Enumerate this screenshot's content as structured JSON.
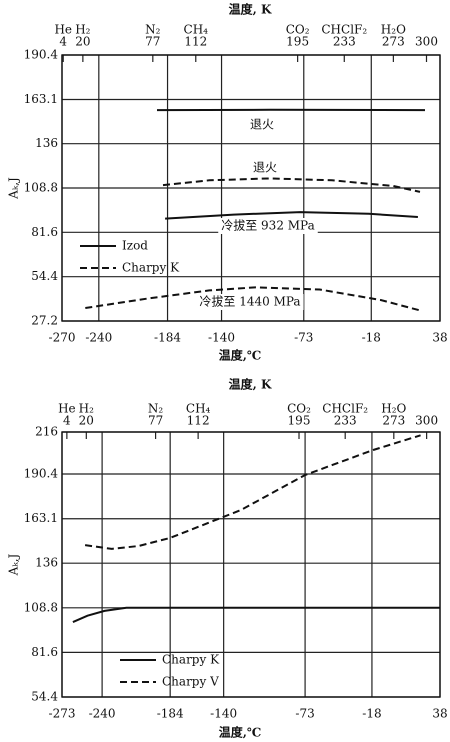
{
  "chart_data": [
    {
      "type": "line",
      "title": "温度, K",
      "x_label": "温度,℃",
      "y_label": "Aₖ,J",
      "xlim": [
        -270,
        38
      ],
      "xticks": [
        -270,
        -240,
        -184,
        -140,
        -73,
        -18,
        38
      ],
      "ylim": [
        27.2,
        190.4
      ],
      "yticks": [
        190.4,
        163.1,
        136,
        108.8,
        81.6,
        54.4,
        27.2
      ],
      "x2lim": [
        3,
        311
      ],
      "x2ticks": [
        4,
        20,
        77,
        112,
        195,
        233,
        273,
        300
      ],
      "x2tick_names": [
        "He",
        "H₂",
        "N₂",
        "CH₄",
        "CO₂",
        "CHClF₂",
        "H₂O",
        null
      ],
      "grid": true,
      "legend": "lower left",
      "series": [
        {
          "name": "Izod",
          "color": "#111111",
          "style": "solid",
          "x": [
            -192.6,
            -100,
            25.8,
            null,
            -186,
            -130,
            -76,
            -20,
            20
          ],
          "values": [
            156.6,
            156.8,
            156.6,
            null,
            90,
            92.5,
            94,
            93,
            91
          ]
        },
        {
          "name": "Charpy K",
          "color": "#111111",
          "style": "dashed",
          "x": [
            -187.7,
            -150,
            -100.5,
            -50,
            0,
            21.7,
            null,
            -251,
            -200,
            -150,
            -112.7,
            -60,
            -10,
            21
          ],
          "values": [
            110.6,
            113.5,
            114.7,
            113.5,
            110,
            106.4,
            null,
            35.2,
            41,
            46,
            47.8,
            46.5,
            40,
            33.8
          ]
        }
      ],
      "annotations": [
        "退火",
        "退火",
        "冷拔至 932 MPa",
        "冷拔至 1440 MPa"
      ]
    },
    {
      "type": "line",
      "title": "温度, K",
      "x_label": "温度,℃",
      "y_label": "Aₖ,J",
      "xlim": [
        -273,
        38
      ],
      "xticks": [
        -273,
        -240,
        -184,
        -140,
        -73,
        -18,
        38
      ],
      "ylim": [
        54.4,
        216
      ],
      "yticks": [
        216,
        190.4,
        163.1,
        136,
        108.8,
        81.6,
        54.4
      ],
      "x2lim": [
        0,
        311
      ],
      "x2ticks": [
        4,
        20,
        77,
        112,
        195,
        233,
        273,
        300
      ],
      "x2tick_names": [
        "He",
        "H₂",
        "N₂",
        "CH₄",
        "CO₂",
        "CHClF₂",
        "H₂O",
        null
      ],
      "grid": true,
      "legend": "lower center",
      "series": [
        {
          "name": "Charpy K",
          "color": "#111111",
          "style": "solid",
          "x": [
            -264,
            -252,
            -238,
            -220,
            -150,
            -50,
            38
          ],
          "values": [
            100.1,
            104,
            106.9,
            108.8,
            108.8,
            108.8,
            108.8
          ]
        },
        {
          "name": "Charpy V",
          "color": "#111111",
          "style": "dashed",
          "x": [
            -254,
            -232,
            -210,
            -184,
            -126,
            -73,
            -17,
            22
          ],
          "values": [
            147,
            144.7,
            146.5,
            151.4,
            168.4,
            189.8,
            205,
            214
          ]
        }
      ]
    }
  ]
}
